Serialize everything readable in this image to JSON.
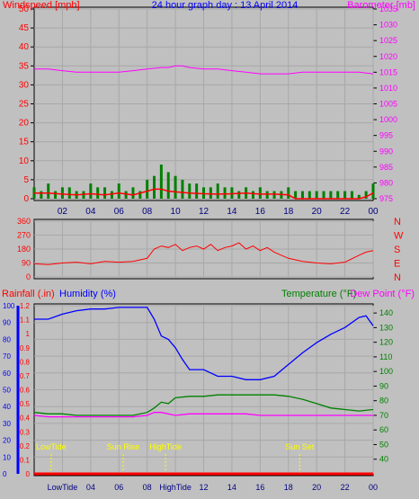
{
  "header": {
    "left_title": "Windspeed [mph]",
    "center_title": "24 hour graph day : 13 April 2014",
    "right_title": "Barometer [mb]"
  },
  "colors": {
    "background": "#c0c0c0",
    "windspeed": "#ff0000",
    "gust": "#008000",
    "barometer": "#ff00ff",
    "direction": "#ff0000",
    "humidity": "#0000ff",
    "temperature": "#008000",
    "dewpoint": "#ff00ff",
    "rainfall": "#ff0000",
    "events": "#ffff00",
    "hour_labels": "#000080",
    "rain_axis": "#0000ff"
  },
  "chart_data": [
    {
      "type": "line",
      "panel": "wind-barometer",
      "title": "Windspeed [mph]",
      "ylabel": "Windspeed [mph]",
      "ylim": [
        0,
        50
      ],
      "yticks": [
        "0",
        "5",
        "10",
        "15",
        "20",
        "25",
        "30",
        "35",
        "40",
        "45",
        "50"
      ],
      "y2label": "Barometer [mb]",
      "y2lim": [
        975,
        1035
      ],
      "y2ticks": [
        "975",
        "980",
        "985",
        "990",
        "995",
        "1000",
        "1005",
        "1010",
        "1015",
        "1020",
        "1025",
        "1030",
        "1035"
      ],
      "xlim": [
        0,
        24
      ],
      "xticks": [
        "02",
        "04",
        "06",
        "08",
        "10",
        "12",
        "14",
        "16",
        "18",
        "20",
        "22",
        "00"
      ],
      "grid": true,
      "series": [
        {
          "name": "Windspeed [mph]",
          "type": "line",
          "x": [
            0,
            1,
            2,
            3,
            4,
            5,
            6,
            7,
            8,
            8.5,
            9,
            9.5,
            10,
            11,
            12,
            13,
            14,
            15,
            16,
            17,
            18,
            18.5,
            19,
            20,
            21,
            22,
            23,
            23.5,
            24
          ],
          "y": [
            1.5,
            1.5,
            1.2,
            1,
            1.3,
            1,
            1.5,
            1,
            2,
            2.5,
            2.5,
            2,
            1.8,
            1.5,
            1.3,
            1.2,
            1.3,
            1.5,
            1.2,
            1.2,
            1,
            0,
            0,
            0,
            0,
            0,
            0,
            0.5,
            1.5
          ]
        },
        {
          "name": "Gust",
          "type": "bar",
          "x": [
            0,
            0.5,
            1,
            1.5,
            2,
            2.5,
            3,
            3.5,
            4,
            4.5,
            5,
            5.5,
            6,
            6.5,
            7,
            7.5,
            8,
            8.5,
            9,
            9.5,
            10,
            10.5,
            11,
            11.5,
            12,
            12.5,
            13,
            13.5,
            14,
            14.5,
            15,
            15.5,
            16,
            16.5,
            17,
            17.5,
            18,
            18.5,
            19,
            19.5,
            20,
            20.5,
            21,
            21.5,
            22,
            22.5,
            23,
            23.5,
            24
          ],
          "y": [
            3,
            2,
            4,
            2,
            3,
            3,
            2,
            2,
            4,
            3,
            3,
            2,
            4,
            2,
            3,
            2,
            5,
            6,
            9,
            7,
            6,
            5,
            4,
            4,
            3,
            3,
            4,
            3,
            3,
            2,
            3,
            2,
            3,
            2,
            2,
            2,
            3,
            2,
            2,
            2,
            2,
            2,
            2,
            2,
            2,
            2,
            1,
            2,
            4
          ]
        },
        {
          "name": "Barometer [mb]",
          "type": "line",
          "axis": "right",
          "x": [
            0,
            1,
            2,
            3,
            4,
            5,
            6,
            7,
            8,
            9,
            9.5,
            10,
            10.5,
            11,
            12,
            13,
            14,
            15,
            16,
            17,
            18,
            19,
            20,
            21,
            22,
            23,
            24
          ],
          "y": [
            1016,
            1016,
            1015.5,
            1015,
            1015,
            1015,
            1015,
            1015.5,
            1016,
            1016.5,
            1016.5,
            1017,
            1017,
            1016.5,
            1016,
            1016,
            1015.5,
            1015,
            1014.5,
            1014.5,
            1014.5,
            1015,
            1015,
            1015,
            1015,
            1015,
            1014.5
          ]
        }
      ]
    },
    {
      "type": "line",
      "panel": "wind-direction",
      "ylabel": "Wind direction",
      "ylim": [
        0,
        360
      ],
      "yticks": [
        "0",
        "90",
        "180",
        "270",
        "360"
      ],
      "direction_labels": [
        "N",
        "W",
        "S",
        "E",
        "N"
      ],
      "xlim": [
        0,
        24
      ],
      "grid": true,
      "series": [
        {
          "name": "Direction",
          "x": [
            0,
            1,
            2,
            3,
            4,
            5,
            6,
            7,
            8,
            8.5,
            9,
            9.5,
            10,
            10.5,
            11,
            11.5,
            12,
            12.5,
            13,
            13.5,
            14,
            14.5,
            15,
            15.5,
            16,
            16.5,
            17,
            17.5,
            18,
            19,
            20,
            21,
            22,
            23,
            23.5,
            24
          ],
          "y": [
            85,
            80,
            90,
            95,
            85,
            100,
            95,
            100,
            120,
            180,
            200,
            190,
            210,
            170,
            190,
            200,
            180,
            210,
            170,
            190,
            200,
            220,
            180,
            200,
            170,
            190,
            160,
            140,
            120,
            100,
            90,
            85,
            95,
            140,
            160,
            170
          ]
        }
      ]
    },
    {
      "type": "line",
      "panel": "temperature-humidity",
      "legend": [
        "Rainfall (.in)",
        "Humidity (%)",
        "Temperature (°F)",
        "Dew Point (°F)"
      ],
      "ylabel": "Rainfall (.in)",
      "ylim": [
        0,
        1.2
      ],
      "yticks": [
        "0",
        "0.1",
        "0.2",
        "0.3",
        "0.4",
        "0.5",
        "0.6",
        "0.7",
        "0.8",
        "0.9",
        "1",
        "1.1",
        "1.2"
      ],
      "humidity_ylim": [
        0,
        100
      ],
      "humidity_yticks": [
        "0",
        "10",
        "20",
        "30",
        "40",
        "50",
        "60",
        "70",
        "80",
        "90",
        "100"
      ],
      "y2label": "Temperature (°F)",
      "y2lim": [
        30,
        145
      ],
      "y2ticks": [
        "40",
        "50",
        "60",
        "70",
        "80",
        "90",
        "100",
        "110",
        "120",
        "130",
        "140"
      ],
      "xlim": [
        0,
        24
      ],
      "xticks": [
        "LowTide",
        "04",
        "06",
        "08",
        "HighTide",
        "12",
        "14",
        "16",
        "18",
        "20",
        "22",
        "00"
      ],
      "events": [
        {
          "label": "LowTide",
          "x": 1.2
        },
        {
          "label": "Sun Rise",
          "x": 6.3
        },
        {
          "label": "HighTide",
          "x": 9.3
        },
        {
          "label": "Sun Set",
          "x": 18.8
        }
      ],
      "series": [
        {
          "name": "Humidity (%)",
          "axis": "humidity",
          "x": [
            0,
            1,
            2,
            3,
            4,
            5,
            6,
            7,
            8,
            8.5,
            9,
            9.5,
            10,
            10.5,
            11,
            12,
            13,
            14,
            15,
            16,
            17,
            18,
            19,
            20,
            21,
            22,
            23,
            23.5,
            24
          ],
          "y": [
            92,
            92,
            95,
            97,
            98,
            98,
            99,
            99,
            99,
            92,
            82,
            80,
            75,
            68,
            62,
            62,
            58,
            58,
            56,
            56,
            58,
            65,
            72,
            78,
            83,
            87,
            93,
            94,
            88
          ]
        },
        {
          "name": "Temperature (°F)",
          "axis": "right",
          "x": [
            0,
            1,
            2,
            3,
            4,
            5,
            6,
            7,
            8,
            8.5,
            9,
            9.5,
            10,
            11,
            12,
            13,
            14,
            15,
            16,
            17,
            18,
            19,
            20,
            21,
            22,
            23,
            24
          ],
          "y": [
            72,
            71,
            71,
            70,
            70,
            70,
            70,
            70,
            72,
            75,
            79,
            78,
            82,
            83,
            83,
            84,
            84,
            84,
            84,
            84,
            83,
            81,
            78,
            75,
            74,
            73,
            74
          ]
        },
        {
          "name": "Dew Point (°F)",
          "axis": "right",
          "x": [
            0,
            1,
            2,
            3,
            4,
            5,
            6,
            7,
            8,
            8.5,
            9,
            10,
            11,
            12,
            13,
            14,
            15,
            16,
            17,
            18,
            19,
            20,
            21,
            22,
            23,
            24
          ],
          "y": [
            70,
            69,
            69,
            69,
            69,
            69,
            69,
            69,
            70,
            72,
            72,
            70,
            71,
            71,
            71,
            71,
            71,
            70,
            70,
            70,
            70,
            70,
            70,
            70,
            70,
            70
          ]
        },
        {
          "name": "Rainfall (.in)",
          "axis": "left",
          "x": [
            0,
            24
          ],
          "y": [
            0,
            0
          ]
        }
      ]
    }
  ]
}
